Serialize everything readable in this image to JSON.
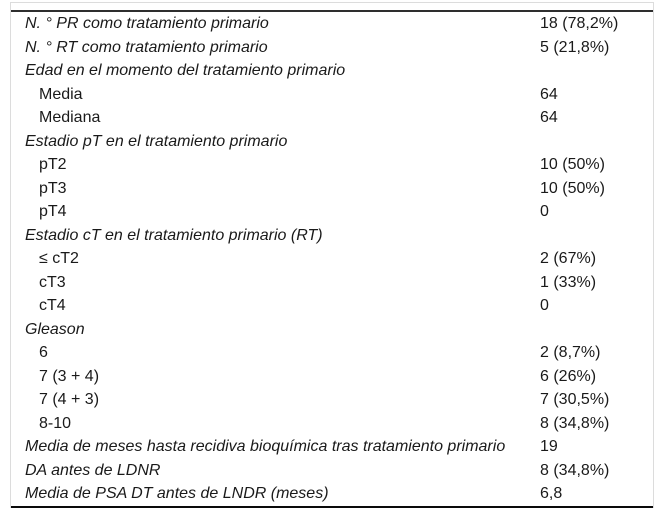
{
  "colors": {
    "background": "#ffffff",
    "text": "#1a1a1a",
    "rule_top": "#2e2e2e",
    "rule_bottom": "#0a0a0a",
    "side_border": "#dcdcdc"
  },
  "table": {
    "rows": [
      {
        "label": "N. ° PR como tratamiento primario",
        "value": "18 (78,2%)",
        "kind": "category"
      },
      {
        "label": "N. ° RT como tratamiento primario",
        "value": "5 (21,8%)",
        "kind": "category"
      },
      {
        "label": "Edad en el momento del tratamiento primario",
        "value": "",
        "kind": "category"
      },
      {
        "label": "Media",
        "value": "64",
        "kind": "sub"
      },
      {
        "label": "Mediana",
        "value": "64",
        "kind": "sub"
      },
      {
        "label": "Estadio pT en el tratamiento primario",
        "value": "",
        "kind": "category"
      },
      {
        "label": "pT2",
        "value": "10 (50%)",
        "kind": "sub"
      },
      {
        "label": "pT3",
        "value": "10 (50%)",
        "kind": "sub"
      },
      {
        "label": "pT4",
        "value": "0",
        "kind": "sub"
      },
      {
        "label": "Estadio cT en el tratamiento primario (RT)",
        "value": "",
        "kind": "category"
      },
      {
        "label": "≤ cT2",
        "value": "2 (67%)",
        "kind": "sub"
      },
      {
        "label": "cT3",
        "value": "1 (33%)",
        "kind": "sub"
      },
      {
        "label": "cT4",
        "value": "0",
        "kind": "sub"
      },
      {
        "label": "Gleason",
        "value": "",
        "kind": "category"
      },
      {
        "label": "6",
        "value": "2 (8,7%)",
        "kind": "sub"
      },
      {
        "label": "7 (3 + 4)",
        "value": "6 (26%)",
        "kind": "sub"
      },
      {
        "label": "7 (4 + 3)",
        "value": "7 (30,5%)",
        "kind": "sub"
      },
      {
        "label": "8-10",
        "value": "8 (34,8%)",
        "kind": "sub"
      },
      {
        "label": "Media de meses hasta recidiva bioquímica tras tratamiento primario",
        "value": "19",
        "kind": "category"
      },
      {
        "label": "DA antes de LDNR",
        "value": "8 (34,8%)",
        "kind": "category"
      },
      {
        "label": "Media de PSA DT antes de LNDR (meses)",
        "value": "6,8",
        "kind": "category"
      }
    ]
  }
}
